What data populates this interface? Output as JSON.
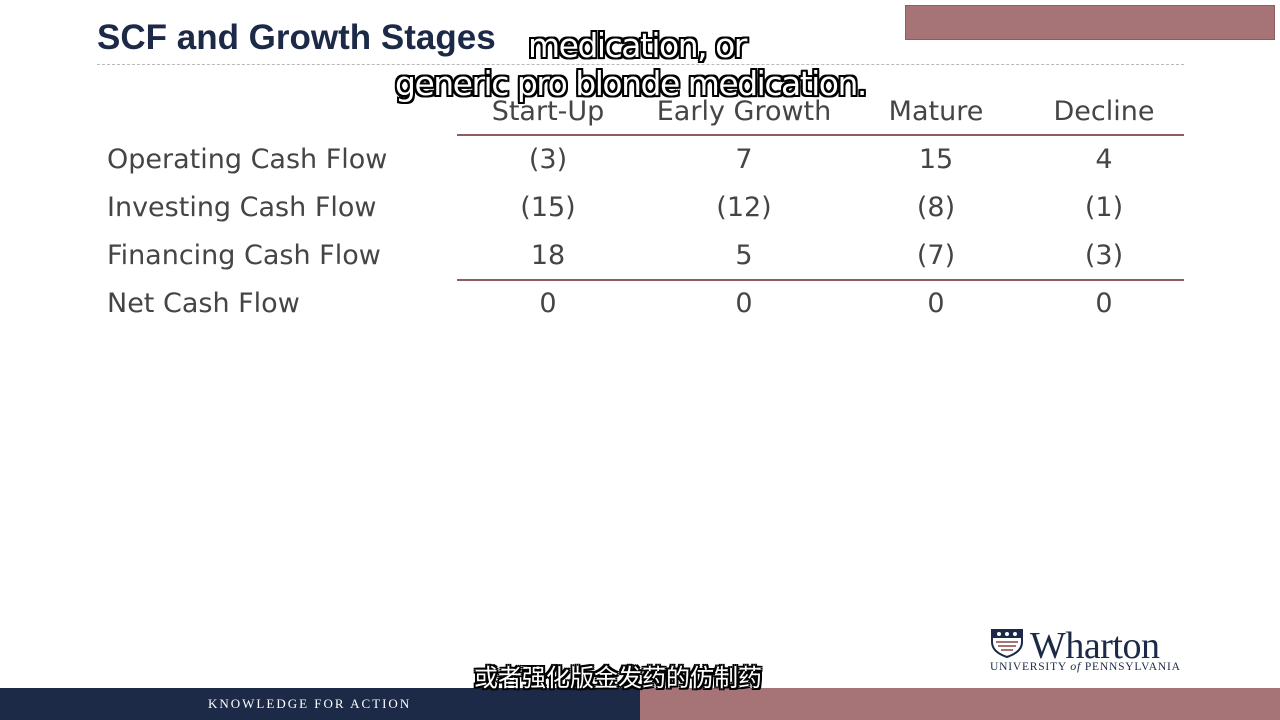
{
  "slide": {
    "title": "SCF and Growth Stages",
    "footer": "KNOWLEDGE FOR ACTION"
  },
  "captions": {
    "english_line1": "medication, or",
    "english_line2": "generic pro blonde medication.",
    "chinese": "或者强化版金发药的仿制药"
  },
  "table": {
    "columns": [
      "Start-Up",
      "Early Growth",
      "Mature",
      "Decline"
    ],
    "rows": [
      {
        "label": "Operating Cash Flow",
        "values": [
          "(3)",
          "7",
          "15",
          "4"
        ]
      },
      {
        "label": "Investing Cash Flow",
        "values": [
          "(15)",
          "(12)",
          "(8)",
          "(1)"
        ]
      },
      {
        "label": "Financing Cash Flow",
        "values": [
          "18",
          "5",
          "(7)",
          "(3)"
        ]
      },
      {
        "label": "Net Cash Flow",
        "values": [
          "0",
          "0",
          "0",
          "0"
        ]
      }
    ]
  },
  "logo": {
    "name": "Wharton",
    "subtitle_part1": "UNIVERSITY ",
    "subtitle_of": "of",
    "subtitle_part2": " PENNSYLVANIA"
  },
  "colors": {
    "navy": "#1c2a48",
    "maroon": "#a67377",
    "text_gray": "#454545"
  }
}
